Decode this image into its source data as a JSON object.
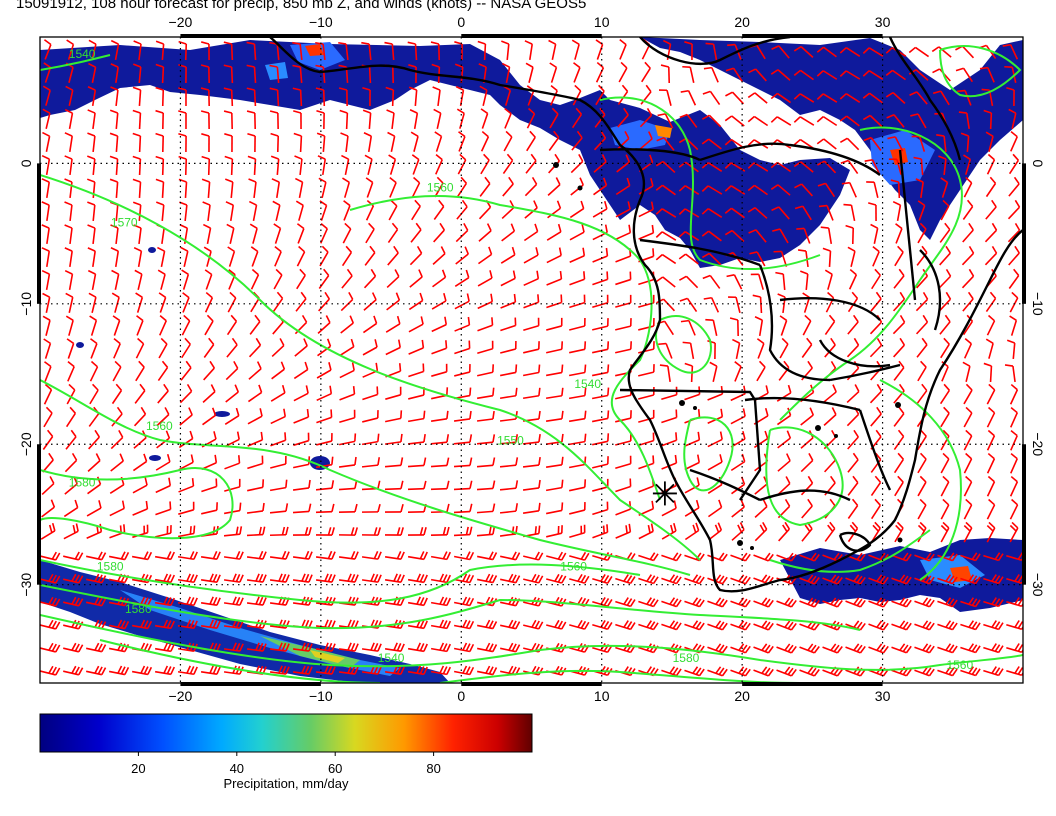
{
  "title": "15091912, 108 hour forecast for precip, 850 mb Z, and winds (knots) -- NASA GEOS5",
  "map": {
    "lon_range": [
      -30,
      40
    ],
    "lat_range": [
      -37,
      9
    ],
    "lon_ticks": [
      {
        "value": -20,
        "label": "−20"
      },
      {
        "value": -10,
        "label": "−10"
      },
      {
        "value": 0,
        "label": "0"
      },
      {
        "value": 10,
        "label": "10"
      },
      {
        "value": 20,
        "label": "20"
      },
      {
        "value": 30,
        "label": "30"
      }
    ],
    "lat_ticks": [
      {
        "value": 0,
        "label": "0"
      },
      {
        "value": -10,
        "label": "−10"
      },
      {
        "value": -20,
        "label": "−20"
      },
      {
        "value": -30,
        "label": "−30"
      }
    ],
    "grid": true,
    "marker": {
      "lon": 14.5,
      "lat": -23.5,
      "symbol": "asterisk"
    },
    "contour_labels": [
      {
        "text": "1540",
        "lon": -27,
        "lat": 7.5
      },
      {
        "text": "1570",
        "lon": -24,
        "lat": -4.5
      },
      {
        "text": "1560",
        "lon": -1.5,
        "lat": -2
      },
      {
        "text": "1540",
        "lon": 9,
        "lat": -16
      },
      {
        "text": "1550",
        "lon": 3.5,
        "lat": -20
      },
      {
        "text": "1560",
        "lon": -21.5,
        "lat": -19
      },
      {
        "text": "1580",
        "lon": -27,
        "lat": -23
      },
      {
        "text": "1580",
        "lon": -25,
        "lat": -29
      },
      {
        "text": "1560",
        "lon": 8,
        "lat": -29
      },
      {
        "text": "1580",
        "lon": -23,
        "lat": -32
      },
      {
        "text": "1540",
        "lon": -5,
        "lat": -35.5
      },
      {
        "text": "1580",
        "lon": 16,
        "lat": -35.5
      },
      {
        "text": "1560",
        "lon": 35.5,
        "lat": -36
      }
    ]
  },
  "colorbar": {
    "label": "Precipitation, mm/day",
    "min": 0,
    "max": 100,
    "ticks": [
      {
        "value": 20,
        "label": "20"
      },
      {
        "value": 40,
        "label": "40"
      },
      {
        "value": 60,
        "label": "60"
      },
      {
        "value": 80,
        "label": "80"
      }
    ]
  },
  "colors": {
    "precip_low": "#0a0a8c",
    "precip_mid": "#1e3cff",
    "wind_barbs": "#ff0000",
    "contours": "#33ee33",
    "coastlines": "#000000"
  }
}
